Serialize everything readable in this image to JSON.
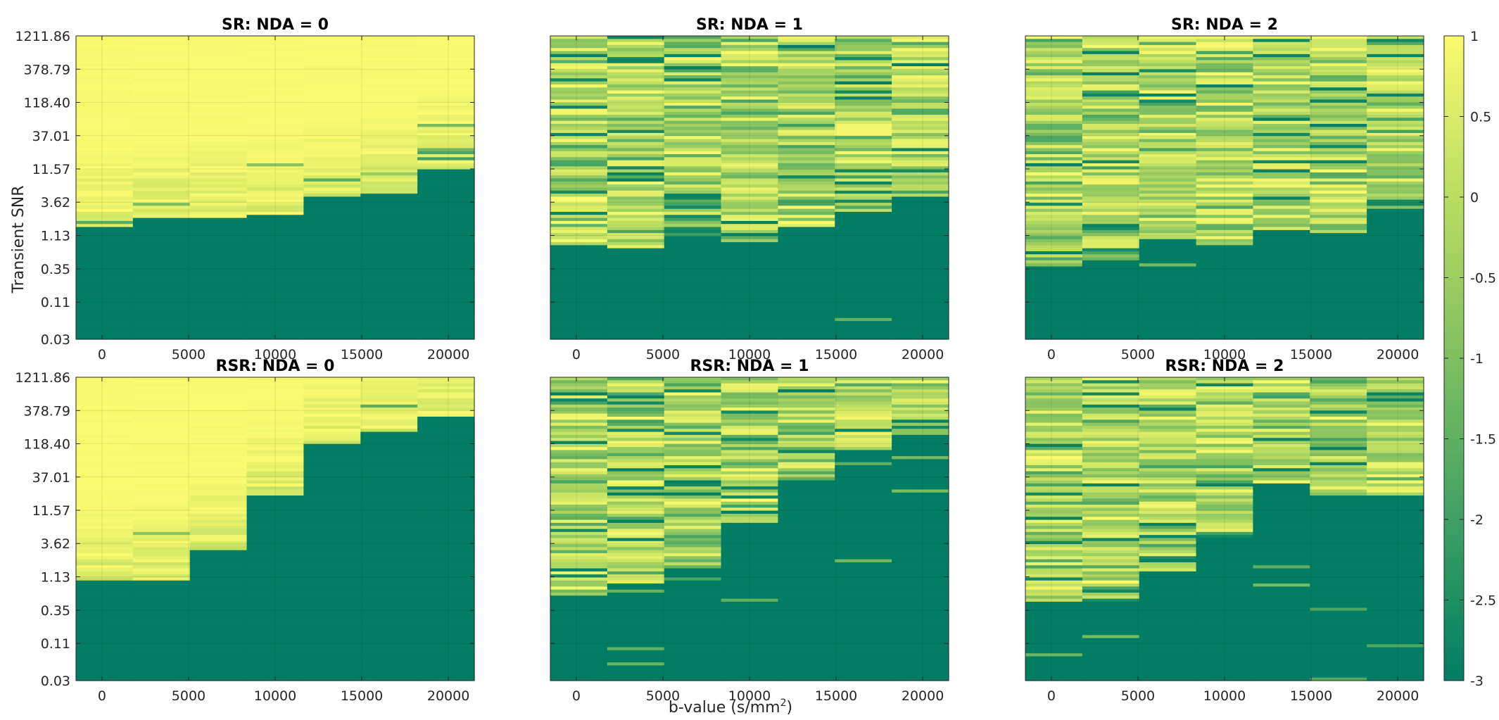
{
  "figure": {
    "ylabel": "Transient SNR",
    "xlabel_main": "b-value (s/mm",
    "xlabel_sup": "2",
    "xlabel_end": ")"
  },
  "colors": {
    "high": "#FAFA6E",
    "mid": "#AFD85C",
    "low": "#007D63",
    "axis": "#262626",
    "grid": "#d9d9d9"
  },
  "chart_data": [
    {
      "type": "heatmap",
      "title": "SR: NDA = 0",
      "method": "SR",
      "nda": 0,
      "x_ticks": [
        "0",
        "5000",
        "10000",
        "15000",
        "20000"
      ],
      "x_tick_values": [
        0,
        5000,
        10000,
        15000,
        20000
      ],
      "xlim": [
        -1500,
        21500
      ],
      "columns_b": [
        0,
        3333,
        6667,
        10000,
        13333,
        16667,
        20000
      ],
      "y_ticks": [
        "1211.86",
        "378.79",
        "118.40",
        "37.01",
        "11.57",
        "3.62",
        "1.13",
        "0.35",
        "0.11",
        "0.03"
      ],
      "y_tick_values": [
        1211.86,
        378.79,
        118.4,
        37.01,
        11.57,
        3.62,
        1.13,
        0.35,
        0.11,
        0.03
      ],
      "y_scale": "log",
      "n_snr_rows": 100,
      "cutoff_snr_per_column": [
        1.6,
        2.1,
        2.2,
        2.4,
        4.2,
        5.0,
        12.0
      ],
      "value_above_cutoff": "about 1 at high SNR, noisier near cutoff",
      "value_below_cutoff": -3
    },
    {
      "type": "heatmap",
      "title": "SR: NDA = 1",
      "method": "SR",
      "nda": 1,
      "x_ticks": [
        "0",
        "5000",
        "10000",
        "15000",
        "20000"
      ],
      "x_tick_values": [
        0,
        5000,
        10000,
        15000,
        20000
      ],
      "xlim": [
        -1500,
        21500
      ],
      "columns_b": [
        0,
        3333,
        6667,
        10000,
        13333,
        16667,
        20000
      ],
      "y_ticks": [
        "",
        "",
        "",
        "",
        "",
        "",
        "",
        "",
        "",
        ""
      ],
      "y_tick_values": [
        1211.86,
        378.79,
        118.4,
        37.01,
        11.57,
        3.62,
        1.13,
        0.35,
        0.11,
        0.03
      ],
      "y_scale": "log",
      "n_snr_rows": 100,
      "cutoff_snr_per_column": [
        0.8,
        0.7,
        1.1,
        0.9,
        1.6,
        2.5,
        4.3
      ],
      "value_above_cutoff": "mixed -3 to 1",
      "value_below_cutoff": -3
    },
    {
      "type": "heatmap",
      "title": "SR: NDA = 2",
      "method": "SR",
      "nda": 2,
      "x_ticks": [
        "0",
        "5000",
        "10000",
        "15000",
        "20000"
      ],
      "x_tick_values": [
        0,
        5000,
        10000,
        15000,
        20000
      ],
      "xlim": [
        -1500,
        21500
      ],
      "columns_b": [
        0,
        3333,
        6667,
        10000,
        13333,
        16667,
        20000
      ],
      "y_ticks": [
        "",
        "",
        "",
        "",
        "",
        "",
        "",
        "",
        "",
        ""
      ],
      "y_tick_values": [
        1211.86,
        378.79,
        118.4,
        37.01,
        11.57,
        3.62,
        1.13,
        0.35,
        0.11,
        0.03
      ],
      "y_scale": "log",
      "n_snr_rows": 100,
      "cutoff_snr_per_column": [
        0.4,
        0.5,
        1.0,
        0.8,
        1.3,
        1.2,
        2.8
      ],
      "value_above_cutoff": "mixed -3 to 1",
      "value_below_cutoff": -3
    },
    {
      "type": "heatmap",
      "title": "RSR: NDA = 0",
      "method": "RSR",
      "nda": 0,
      "x_ticks": [
        "0",
        "5000",
        "10000",
        "15000",
        "20000"
      ],
      "x_tick_values": [
        0,
        5000,
        10000,
        15000,
        20000
      ],
      "xlim": [
        -1500,
        21500
      ],
      "columns_b": [
        0,
        3333,
        6667,
        10000,
        13333,
        16667,
        20000
      ],
      "y_ticks": [
        "1211.86",
        "378.79",
        "118.40",
        "37.01",
        "11.57",
        "3.62",
        "1.13",
        "0.35",
        "0.11",
        "0.03"
      ],
      "y_tick_values": [
        1211.86,
        378.79,
        118.4,
        37.01,
        11.57,
        3.62,
        1.13,
        0.35,
        0.11,
        0.03
      ],
      "y_scale": "log",
      "n_snr_rows": 100,
      "cutoff_snr_per_column": [
        1.0,
        1.0,
        2.9,
        19.0,
        118.0,
        180.0,
        310.0
      ],
      "value_above_cutoff": "about 1 at high SNR, noisier near cutoff",
      "value_below_cutoff": -3
    },
    {
      "type": "heatmap",
      "title": "RSR: NDA = 1",
      "method": "RSR",
      "nda": 1,
      "x_ticks": [
        "0",
        "5000",
        "10000",
        "15000",
        "20000"
      ],
      "x_tick_values": [
        0,
        5000,
        10000,
        15000,
        20000
      ],
      "xlim": [
        -1500,
        21500
      ],
      "columns_b": [
        0,
        3333,
        6667,
        10000,
        13333,
        16667,
        20000
      ],
      "y_ticks": [
        "",
        "",
        "",
        "",
        "",
        "",
        "",
        "",
        "",
        ""
      ],
      "y_tick_values": [
        1211.86,
        378.79,
        118.4,
        37.01,
        11.57,
        3.62,
        1.13,
        0.35,
        0.11,
        0.03
      ],
      "y_scale": "log",
      "n_snr_rows": 100,
      "cutoff_snr_per_column": [
        0.6,
        0.9,
        1.6,
        7.5,
        33.0,
        95.0,
        160.0
      ],
      "value_above_cutoff": "mixed -3 to 1",
      "value_below_cutoff": -3
    },
    {
      "type": "heatmap",
      "title": "RSR: NDA = 2",
      "method": "RSR",
      "nda": 2,
      "x_ticks": [
        "0",
        "5000",
        "10000",
        "15000",
        "20000"
      ],
      "x_tick_values": [
        0,
        5000,
        10000,
        15000,
        20000
      ],
      "xlim": [
        -1500,
        21500
      ],
      "columns_b": [
        0,
        3333,
        6667,
        10000,
        13333,
        16667,
        20000
      ],
      "y_ticks": [
        "",
        "",
        "",
        "",
        "",
        "",
        "",
        "",
        "",
        ""
      ],
      "y_tick_values": [
        1211.86,
        378.79,
        118.4,
        37.01,
        11.57,
        3.62,
        1.13,
        0.35,
        0.11,
        0.03
      ],
      "y_scale": "log",
      "n_snr_rows": 100,
      "cutoff_snr_per_column": [
        0.45,
        0.45,
        1.3,
        4.6,
        30.0,
        19.0,
        19.0
      ],
      "value_above_cutoff": "mixed -3 to 1",
      "value_below_cutoff": -3
    }
  ],
  "colorbar": {
    "range": [
      -3,
      1
    ],
    "ticks": [
      "1",
      "0.5",
      "0",
      "-0.5",
      "-1",
      "-1.5",
      "-2",
      "-2.5",
      "-3"
    ],
    "tick_values": [
      1,
      0.5,
      0,
      -0.5,
      -1,
      -1.5,
      -2,
      -2.5,
      -3
    ]
  }
}
